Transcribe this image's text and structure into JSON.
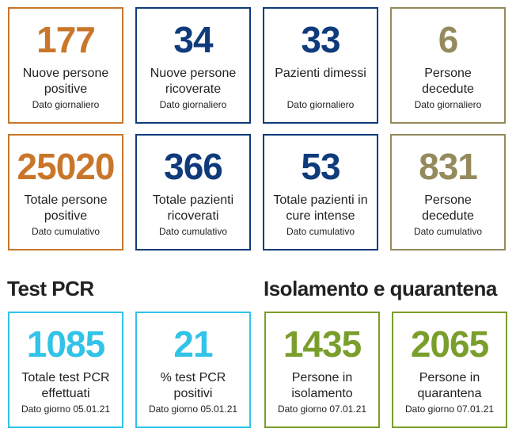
{
  "daily": [
    {
      "value": "177",
      "label1": "Nuove persone",
      "label2": "positive",
      "sub": "Dato giornaliero",
      "color": "#c9762a"
    },
    {
      "value": "34",
      "label1": "Nuove persone",
      "label2": "ricoverate",
      "sub": "Dato giornaliero",
      "color": "#0f3b7c"
    },
    {
      "value": "33",
      "label1": "Pazienti dimessi",
      "label2": "",
      "sub": "Dato giornaliero",
      "color": "#0f3b7c"
    },
    {
      "value": "6",
      "label1": "Persone",
      "label2": "decedute",
      "sub": "Dato giornaliero",
      "color": "#948a5c"
    }
  ],
  "cumulative": [
    {
      "value": "25020",
      "label1": "Totale persone",
      "label2": "positive",
      "sub": "Dato cumulativo",
      "color": "#c9762a"
    },
    {
      "value": "366",
      "label1": "Totale pazienti",
      "label2": "ricoverati",
      "sub": "Dato cumulativo",
      "color": "#0f3b7c"
    },
    {
      "value": "53",
      "label1": "Totale pazienti in",
      "label2": "cure intense",
      "sub": "Dato cumulativo",
      "color": "#0f3b7c"
    },
    {
      "value": "831",
      "label1": "Persone",
      "label2": "decedute",
      "sub": "Dato cumulativo",
      "color": "#948a5c"
    }
  ],
  "sections": {
    "pcr_title": "Test PCR",
    "isolation_title": "Isolamento e quarantena"
  },
  "pcr": [
    {
      "value": "1085",
      "label1": "Totale test PCR",
      "label2": "effettuati",
      "sub": "Dato giorno 05.01.21",
      "color": "#31c3e8"
    },
    {
      "value": "21",
      "label1": "% test PCR",
      "label2": "positivi",
      "sub": "Dato giorno 05.01.21",
      "color": "#31c3e8"
    }
  ],
  "isolation": [
    {
      "value": "1435",
      "label1": "Persone in",
      "label2": "isolamento",
      "sub": "Dato giorno 07.01.21",
      "color": "#7a9e2c"
    },
    {
      "value": "2065",
      "label1": "Persone in",
      "label2": "quarantena",
      "sub": "Dato giorno 07.01.21",
      "color": "#7a9e2c"
    }
  ]
}
